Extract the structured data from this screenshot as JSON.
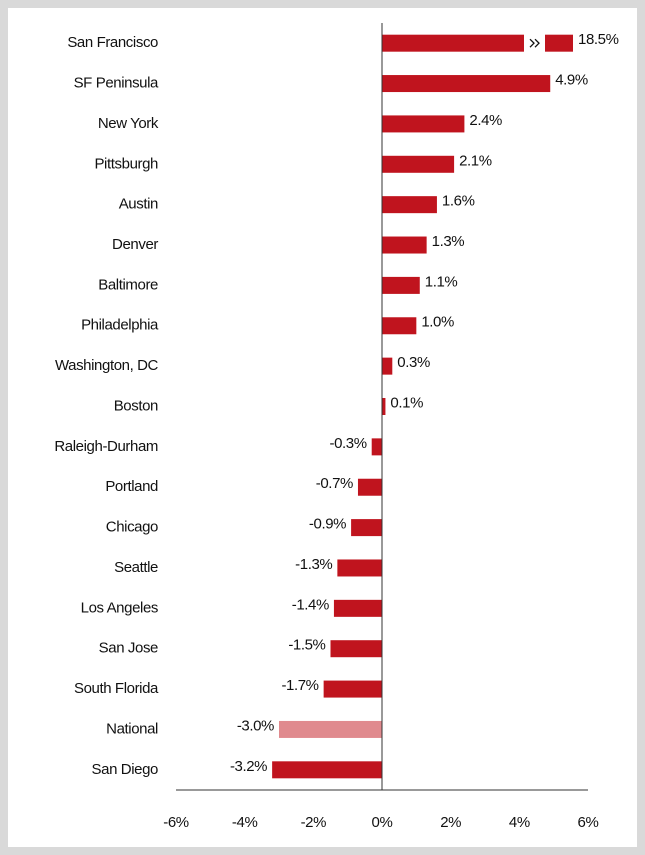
{
  "chart_data": {
    "type": "barh",
    "categories": [
      "San Francisco",
      "SF Peninsula",
      "New York",
      "Pittsburgh",
      "Austin",
      "Denver",
      "Baltimore",
      "Philadelphia",
      "Washington, DC",
      "Boston",
      "Raleigh-Durham",
      "Portland",
      "Chicago",
      "Seattle",
      "Los Angeles",
      "San Jose",
      "South Florida",
      "National",
      "San Diego"
    ],
    "values": [
      18.5,
      4.9,
      2.4,
      2.1,
      1.6,
      1.3,
      1.1,
      1.0,
      0.3,
      0.1,
      -0.3,
      -0.7,
      -0.9,
      -1.3,
      -1.4,
      -1.5,
      -1.7,
      -3.0,
      -3.2
    ],
    "value_labels": [
      "18.5%",
      "4.9%",
      "2.4%",
      "2.1%",
      "1.6%",
      "1.3%",
      "1.1%",
      "1.0%",
      "0.3%",
      "0.1%",
      "-0.3%",
      "-0.7%",
      "-0.9%",
      "-1.3%",
      "-1.4%",
      "-1.5%",
      "-1.7%",
      "-3.0%",
      "-3.2%"
    ],
    "colors": [
      "#c0141e",
      "#c0141e",
      "#c0141e",
      "#c0141e",
      "#c0141e",
      "#c0141e",
      "#c0141e",
      "#c0141e",
      "#c0141e",
      "#c0141e",
      "#c0141e",
      "#c0141e",
      "#c0141e",
      "#c0141e",
      "#c0141e",
      "#c0141e",
      "#c0141e",
      "#e08a8e",
      "#c0141e"
    ],
    "xlim": [
      -6,
      6
    ],
    "xticks": [
      {
        "value": -6,
        "label": "-6%"
      },
      {
        "value": -4,
        "label": "-4%"
      },
      {
        "value": -2,
        "label": "-2%"
      },
      {
        "value": 0,
        "label": "0%"
      },
      {
        "value": 2,
        "label": "2%"
      },
      {
        "value": 4,
        "label": "4%"
      },
      {
        "value": 6,
        "label": "6%"
      }
    ]
  }
}
